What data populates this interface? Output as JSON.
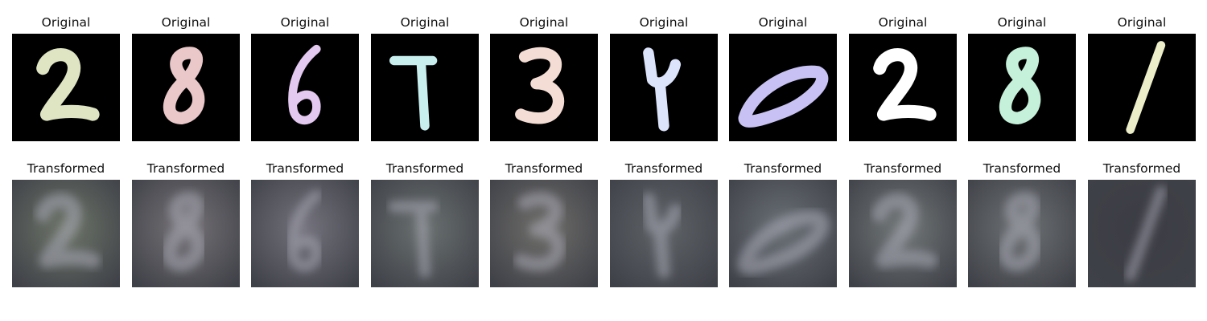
{
  "columns": [
    {
      "digit": "2",
      "original_color": "#dfe5c3",
      "transformed_tint": "#6d7568"
    },
    {
      "digit": "8",
      "original_color": "#eac7c9",
      "transformed_tint": "#767377"
    },
    {
      "digit": "6",
      "original_color": "#e3c8f0",
      "transformed_tint": "#74737d"
    },
    {
      "digit": "7",
      "original_color": "#c8eeee",
      "transformed_tint": "#6a7170"
    },
    {
      "digit": "3",
      "original_color": "#f4ddd4",
      "transformed_tint": "#6f6e6a"
    },
    {
      "digit": "4",
      "original_color": "#dce4fb",
      "transformed_tint": "#5f6468"
    },
    {
      "digit": "0",
      "original_color": "#c8c1f3",
      "transformed_tint": "#6a7076"
    },
    {
      "digit": "2",
      "original_color": "#ffffff",
      "transformed_tint": "#727878"
    },
    {
      "digit": "8",
      "original_color": "#c5f1da",
      "transformed_tint": "#6e7274"
    },
    {
      "digit": "1",
      "original_color": "#ebeec8",
      "transformed_tint": "#3c3d44"
    }
  ],
  "labels": {
    "original": "Original",
    "transformed": "Transformed"
  }
}
